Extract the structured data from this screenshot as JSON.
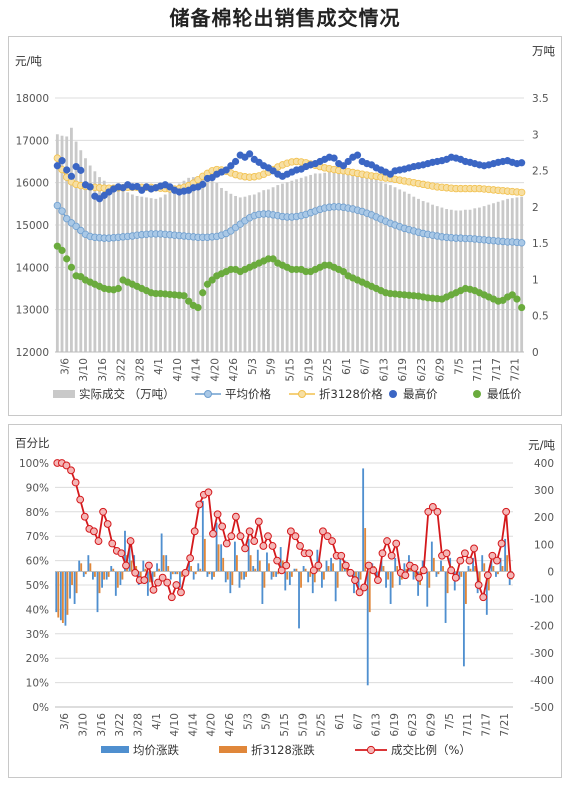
{
  "page": {
    "title": "储备棉轮出销售成交情况"
  },
  "chart_data": [
    {
      "type": "bar+line",
      "title": "",
      "left_unit": "元/吨",
      "right_unit": "万吨",
      "ylim_left": [
        12000,
        18000
      ],
      "ylim_right": [
        0,
        3.5
      ],
      "left_ticks": [
        12000,
        13000,
        14000,
        15000,
        16000,
        17000,
        18000
      ],
      "right_ticks": [
        0,
        0.5,
        1,
        1.5,
        2,
        2.5,
        3,
        3.5
      ],
      "x_tick_labels": [
        "3/6",
        "3/10",
        "3/16",
        "3/22",
        "3/28",
        "4/1",
        "4/10",
        "4/14",
        "4/20",
        "4/26",
        "5/3",
        "5/9",
        "5/15",
        "5/19",
        "5/25",
        "6/1",
        "6/7",
        "6/13",
        "6/19",
        "6/23",
        "6/29",
        "7/5",
        "7/11",
        "7/17",
        "7/21"
      ],
      "x_count": 100,
      "legend": [
        "实际成交 （万吨）",
        "平均价格",
        "折3128价格",
        "最高价",
        "最低价"
      ],
      "legend_position": "bottom",
      "colors": {
        "volume": "#c9c9c9",
        "avg": "#a9c8e6",
        "avg_stroke": "#6f9fcf",
        "p3128": "#f2c14e",
        "p3128_fill": "#f7dfa3",
        "high": "#3b66c4",
        "low": "#6aab3d"
      },
      "series": [
        {
          "name": "实际成交 （万吨）",
          "axis": "right",
          "kind": "bar",
          "values": [
            3.0,
            2.98,
            2.97,
            3.09,
            2.9,
            2.78,
            2.67,
            2.57,
            2.49,
            2.41,
            2.36,
            2.3,
            2.29,
            2.24,
            2.25,
            2.2,
            2.17,
            2.15,
            2.14,
            2.13,
            2.12,
            2.11,
            2.13,
            2.17,
            2.22,
            2.26,
            2.32,
            2.36,
            2.4,
            2.41,
            2.42,
            2.42,
            2.4,
            2.38,
            2.33,
            2.26,
            2.22,
            2.18,
            2.15,
            2.13,
            2.14,
            2.16,
            2.17,
            2.2,
            2.23,
            2.24,
            2.27,
            2.3,
            2.32,
            2.34,
            2.36,
            2.38,
            2.4,
            2.42,
            2.44,
            2.46,
            2.46,
            2.47,
            2.48,
            2.49,
            2.49,
            2.49,
            2.49,
            2.48,
            2.48,
            2.46,
            2.44,
            2.41,
            2.38,
            2.35,
            2.32,
            2.3,
            2.27,
            2.24,
            2.21,
            2.18,
            2.14,
            2.11,
            2.08,
            2.06,
            2.03,
            2.01,
            1.99,
            1.97,
            1.96,
            1.95,
            1.95,
            1.96,
            1.96,
            1.98,
            1.99,
            2.01,
            2.03,
            2.05,
            2.07,
            2.09,
            2.11,
            2.12,
            2.13,
            2.14
          ]
        },
        {
          "name": "平均价格",
          "axis": "left",
          "kind": "line",
          "values": [
            15460,
            15330,
            15150,
            15050,
            14970,
            14870,
            14780,
            14730,
            14710,
            14700,
            14690,
            14690,
            14700,
            14710,
            14720,
            14730,
            14740,
            14760,
            14770,
            14780,
            14790,
            14790,
            14790,
            14780,
            14770,
            14760,
            14750,
            14740,
            14730,
            14720,
            14710,
            14710,
            14710,
            14720,
            14730,
            14760,
            14800,
            14860,
            14940,
            15020,
            15100,
            15170,
            15220,
            15250,
            15260,
            15260,
            15240,
            15220,
            15200,
            15190,
            15190,
            15200,
            15220,
            15250,
            15290,
            15330,
            15370,
            15400,
            15420,
            15430,
            15430,
            15420,
            15400,
            15380,
            15350,
            15320,
            15280,
            15240,
            15190,
            15140,
            15090,
            15040,
            15000,
            14960,
            14920,
            14890,
            14860,
            14830,
            14800,
            14780,
            14760,
            14740,
            14720,
            14710,
            14700,
            14690,
            14690,
            14680,
            14680,
            14670,
            14660,
            14650,
            14640,
            14630,
            14620,
            14610,
            14600,
            14600,
            14590,
            14580
          ]
        },
        {
          "name": "折3128价格",
          "axis": "left",
          "kind": "line",
          "values": [
            16580,
            16310,
            16130,
            16020,
            15960,
            15930,
            15910,
            15900,
            15890,
            15880,
            15870,
            15870,
            15870,
            15880,
            15880,
            15890,
            15890,
            15890,
            15890,
            15890,
            15890,
            15880,
            15870,
            15860,
            15850,
            15850,
            15860,
            15890,
            15930,
            15990,
            16070,
            16150,
            16220,
            16280,
            16310,
            16300,
            16270,
            16230,
            16190,
            16160,
            16140,
            16130,
            16140,
            16160,
            16200,
            16250,
            16310,
            16370,
            16420,
            16460,
            16490,
            16500,
            16490,
            16470,
            16440,
            16410,
            16380,
            16350,
            16330,
            16310,
            16290,
            16280,
            16260,
            16240,
            16220,
            16200,
            16180,
            16160,
            16150,
            16130,
            16110,
            16100,
            16080,
            16060,
            16040,
            16020,
            16000,
            15980,
            15960,
            15940,
            15920,
            15900,
            15890,
            15880,
            15870,
            15860,
            15860,
            15860,
            15860,
            15860,
            15860,
            15850,
            15840,
            15830,
            15820,
            15810,
            15800,
            15790,
            15780,
            15770
          ]
        },
        {
          "name": "最高价",
          "axis": "left",
          "kind": "scatter",
          "values": [
            16400,
            16520,
            16300,
            16150,
            16380,
            16290,
            15950,
            15900,
            15680,
            15620,
            15700,
            15780,
            15850,
            15900,
            15880,
            15950,
            15900,
            15910,
            15820,
            15900,
            15850,
            15880,
            15920,
            15950,
            15900,
            15820,
            15780,
            15800,
            15820,
            15880,
            15900,
            15960,
            16100,
            16120,
            16200,
            16250,
            16300,
            16400,
            16500,
            16650,
            16600,
            16680,
            16550,
            16480,
            16400,
            16350,
            16280,
            16200,
            16150,
            16200,
            16250,
            16300,
            16320,
            16380,
            16420,
            16450,
            16500,
            16550,
            16600,
            16580,
            16450,
            16400,
            16500,
            16600,
            16650,
            16500,
            16450,
            16420,
            16350,
            16300,
            16250,
            16200,
            16280,
            16300,
            16320,
            16350,
            16380,
            16400,
            16420,
            16450,
            16480,
            16500,
            16520,
            16550,
            16600,
            16580,
            16550,
            16500,
            16480,
            16450,
            16420,
            16400,
            16420,
            16450,
            16480,
            16500,
            16520,
            16480,
            16450,
            16470
          ]
        },
        {
          "name": "最低价",
          "axis": "left",
          "kind": "scatter",
          "values": [
            14500,
            14400,
            14200,
            14000,
            13800,
            13780,
            13700,
            13650,
            13600,
            13550,
            13500,
            13480,
            13470,
            13500,
            13700,
            13650,
            13600,
            13550,
            13500,
            13450,
            13400,
            13380,
            13380,
            13370,
            13360,
            13350,
            13340,
            13330,
            13200,
            13100,
            13050,
            13400,
            13600,
            13700,
            13800,
            13850,
            13900,
            13950,
            13950,
            13900,
            13950,
            14000,
            14050,
            14100,
            14150,
            14200,
            14200,
            14100,
            14050,
            14000,
            13950,
            13950,
            13950,
            13900,
            13900,
            13950,
            14000,
            14050,
            14050,
            14000,
            13950,
            13900,
            13800,
            13750,
            13700,
            13650,
            13600,
            13550,
            13500,
            13450,
            13400,
            13380,
            13370,
            13360,
            13350,
            13340,
            13330,
            13320,
            13300,
            13280,
            13270,
            13260,
            13250,
            13300,
            13350,
            13400,
            13450,
            13500,
            13480,
            13450,
            13400,
            13350,
            13300,
            13250,
            13200,
            13220,
            13300,
            13350,
            13250,
            13050
          ]
        }
      ]
    },
    {
      "type": "bar+line",
      "title": "",
      "left_unit": "百分比",
      "right_unit": "元/吨",
      "ylim_left": [
        0,
        100
      ],
      "ylim_right": [
        -500,
        400
      ],
      "left_ticks": [
        "0%",
        "10%",
        "20%",
        "30%",
        "40%",
        "50%",
        "60%",
        "70%",
        "80%",
        "90%",
        "100%"
      ],
      "right_ticks": [
        -500,
        -400,
        -300,
        -200,
        -100,
        0,
        100,
        200,
        300,
        400
      ],
      "x_tick_labels": [
        "3/6",
        "3/10",
        "3/16",
        "3/22",
        "3/28",
        "4/1",
        "4/10",
        "4/14",
        "4/20",
        "4/26",
        "5/3",
        "5/9",
        "5/15",
        "5/19",
        "5/25",
        "6/1",
        "6/7",
        "6/13",
        "6/19",
        "6/23",
        "6/29",
        "7/5",
        "7/11",
        "7/17",
        "7/21"
      ],
      "x_count": 100,
      "legend": [
        "均价涨跌",
        "折3128涨跌",
        "成交比例（%）"
      ],
      "legend_position": "bottom",
      "colors": {
        "avg_change": "#4f8fcf",
        "p3128_change": "#e0873a",
        "ratio": "#d4191c",
        "ratio_fill": "#f4b6b6"
      },
      "series": [
        {
          "name": "均价涨跌",
          "axis": "right",
          "kind": "bar",
          "values": [
            -150,
            -180,
            -200,
            -100,
            -120,
            40,
            -20,
            60,
            -30,
            -150,
            -60,
            -30,
            20,
            -90,
            -50,
            150,
            100,
            60,
            -50,
            40,
            -90,
            -40,
            30,
            140,
            60,
            -30,
            -10,
            -60,
            -20,
            40,
            -30,
            30,
            260,
            -20,
            -30,
            180,
            100,
            -40,
            -80,
            110,
            -60,
            -30,
            120,
            20,
            80,
            -120,
            70,
            -30,
            -20,
            90,
            -70,
            -50,
            10,
            -210,
            20,
            -40,
            -80,
            80,
            -60,
            40,
            50,
            -110,
            70,
            40,
            -20,
            -80,
            -60,
            380,
            -420,
            30,
            -40,
            40,
            -60,
            -120,
            50,
            -50,
            30,
            60,
            -30,
            -90,
            40,
            -130,
            110,
            -20,
            40,
            -190,
            50,
            -70,
            -30,
            -350,
            20,
            50,
            -80,
            60,
            -160,
            40,
            -20,
            50,
            120,
            -50
          ]
        },
        {
          "name": "折3128涨跌",
          "axis": "right",
          "kind": "bar",
          "values": [
            -170,
            -190,
            -160,
            -50,
            -80,
            30,
            -10,
            30,
            -20,
            -80,
            -30,
            -20,
            10,
            -60,
            -30,
            60,
            40,
            20,
            -30,
            10,
            -40,
            -20,
            10,
            60,
            20,
            -10,
            -10,
            -20,
            -10,
            20,
            -10,
            10,
            120,
            -10,
            -20,
            100,
            50,
            -30,
            -50,
            60,
            -30,
            -20,
            60,
            10,
            40,
            -60,
            30,
            -20,
            -10,
            40,
            -30,
            -20,
            10,
            -60,
            10,
            -20,
            -40,
            40,
            -30,
            20,
            30,
            -60,
            30,
            20,
            -10,
            -40,
            -30,
            160,
            -150,
            20,
            -20,
            20,
            -30,
            -60,
            20,
            -30,
            10,
            30,
            -20,
            -50,
            20,
            -60,
            50,
            -10,
            20,
            -80,
            20,
            -30,
            -20,
            -120,
            10,
            20,
            -40,
            30,
            -70,
            20,
            -10,
            20,
            60,
            -30
          ]
        },
        {
          "name": "成交比例（%）",
          "axis": "left",
          "kind": "line",
          "values": [
            100,
            100,
            99,
            97,
            92,
            85,
            78,
            73,
            72,
            68,
            80,
            75,
            67,
            64,
            63,
            58,
            68,
            55,
            52,
            52,
            58,
            48,
            51,
            53,
            51,
            45,
            50,
            47,
            55,
            61,
            72,
            83,
            87,
            88,
            71,
            79,
            74,
            67,
            70,
            78,
            70,
            65,
            72,
            68,
            76,
            66,
            70,
            66,
            60,
            56,
            58,
            72,
            70,
            66,
            63,
            63,
            56,
            58,
            72,
            70,
            68,
            62,
            62,
            58,
            55,
            52,
            47,
            49,
            58,
            56,
            52,
            63,
            68,
            62,
            67,
            55,
            54,
            58,
            57,
            53,
            56,
            80,
            82,
            80,
            62,
            63,
            56,
            53,
            60,
            63,
            60,
            65,
            50,
            45,
            54,
            62,
            60,
            67,
            80,
            54
          ]
        }
      ]
    }
  ]
}
